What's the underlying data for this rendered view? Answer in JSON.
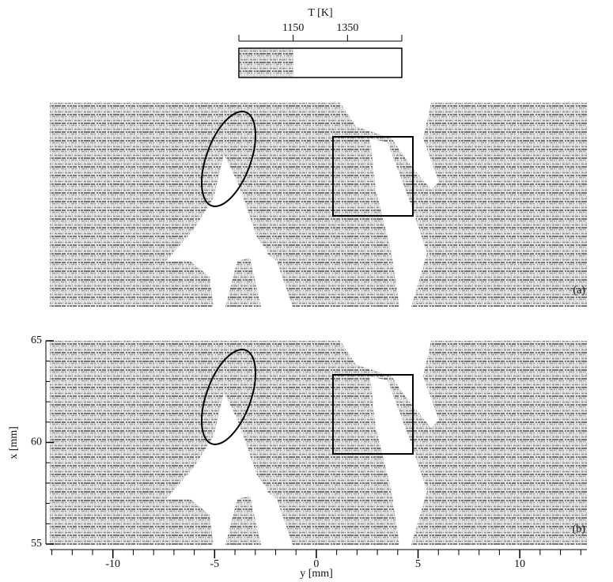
{
  "colorbar": {
    "label": "T [K]",
    "lim": [
      950,
      1550
    ],
    "ticks": [
      1150,
      1350
    ],
    "fill_to": 1150
  },
  "panels": [
    {
      "label": "(a)"
    },
    {
      "label": "(b)"
    }
  ],
  "x_axis": {
    "label": "y [mm]",
    "lim": [
      -13.1,
      13.3
    ],
    "ticks": [
      -10,
      -5,
      0,
      5,
      10
    ]
  },
  "y_axis": {
    "label": "x [mm]",
    "lim": [
      55,
      65
    ],
    "ticks": [
      55,
      60,
      65
    ]
  }
}
